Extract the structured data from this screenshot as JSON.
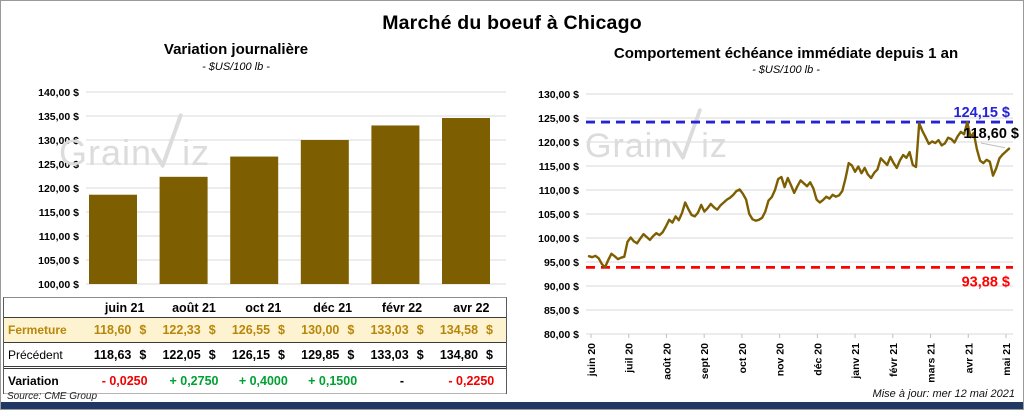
{
  "title": "Marché du boeuf à Chicago",
  "watermark": {
    "part1": "Grain",
    "part2": "iz",
    "full": "GrainWiz"
  },
  "footer": {
    "source": "Source: CME Group",
    "updated": "Mise à jour: mer 12 mai 2021"
  },
  "colors": {
    "gold": "#7D5F02",
    "gold_text": "#B8860B",
    "cream": "#FDF3D0",
    "blue": "#2424D2",
    "red": "#FF0000",
    "green": "#00A033",
    "navy": "#1F3864",
    "grid": "#D9D9D9",
    "watermark": "#DCDCDC",
    "leader": "#BFBFBF"
  },
  "chart_data": [
    {
      "type": "bar",
      "title": "Variation  journalière",
      "subtitle": "- $US/100 lb -",
      "categories": [
        "juin 21",
        "août 21",
        "oct 21",
        "déc 21",
        "févr 22",
        "avr 22"
      ],
      "values": [
        118.6,
        122.33,
        126.55,
        130.0,
        133.03,
        134.58
      ],
      "ylim": [
        100,
        140
      ],
      "ytick_step": 5,
      "ytick_suffix": " $",
      "grid": true,
      "legend": "none"
    },
    {
      "type": "line",
      "title": "Comportement  échéance immédiate depuis 1 an",
      "subtitle": "- $US/100 lb -",
      "x_labels": [
        "juin 20",
        "juil 20",
        "août 20",
        "sept 20",
        "oct 20",
        "nov 20",
        "déc 20",
        "janv 21",
        "févr 21",
        "mars 21",
        "avr 21",
        "mai 21"
      ],
      "values": [
        96.2,
        96.0,
        96.3,
        95.8,
        94.6,
        93.88,
        95.4,
        96.7,
        96.2,
        95.6,
        95.9,
        96.1,
        99.2,
        100.1,
        99.3,
        98.9,
        99.9,
        100.8,
        100.2,
        99.6,
        100.4,
        101.0,
        100.6,
        101.2,
        102.4,
        103.8,
        103.2,
        104.5,
        103.7,
        105.2,
        107.4,
        106.0,
        104.8,
        104.5,
        105.3,
        106.9,
        105.5,
        106.2,
        107.1,
        106.4,
        105.9,
        106.8,
        107.4,
        108.0,
        108.4,
        109.0,
        109.8,
        110.1,
        109.2,
        108.0,
        105.0,
        103.9,
        103.6,
        103.8,
        104.2,
        105.5,
        107.8,
        108.5,
        110.0,
        112.3,
        112.7,
        110.6,
        112.5,
        111.0,
        109.4,
        110.8,
        112.0,
        111.4,
        110.8,
        111.6,
        110.3,
        108.0,
        107.4,
        107.9,
        108.6,
        108.2,
        109.0,
        108.6,
        108.9,
        109.8,
        112.4,
        115.6,
        115.1,
        113.8,
        114.9,
        113.5,
        114.6,
        113.2,
        112.5,
        113.6,
        114.3,
        116.6,
        115.9,
        115.2,
        116.9,
        115.6,
        114.6,
        116.2,
        117.3,
        116.7,
        117.9,
        115.2,
        114.8,
        123.9,
        122.3,
        121.0,
        119.6,
        120.1,
        119.8,
        120.4,
        119.3,
        119.7,
        120.9,
        120.6,
        119.9,
        121.2,
        122.1,
        121.6,
        124.15,
        121.0,
        121.9,
        118.5,
        116.1,
        115.6,
        116.3,
        115.9,
        113.0,
        114.5,
        116.6,
        117.4,
        118.0,
        118.6
      ],
      "ylim": [
        80,
        130
      ],
      "ytick_step": 5,
      "ytick_suffix": " $",
      "grid": true,
      "legend": "none",
      "max_line": {
        "value": 124.15,
        "label": "124,15 $"
      },
      "min_line": {
        "value": 93.88,
        "label": "93,88 $"
      },
      "last_point_label": "118,60 $"
    }
  ],
  "table": {
    "columns": [
      "juin 21",
      "août 21",
      "oct 21",
      "déc 21",
      "févr 22",
      "avr 22"
    ],
    "unit": "$",
    "rows": [
      {
        "label": "Fermeture",
        "style": "fermeture",
        "values": [
          "118,60",
          "122,33",
          "126,55",
          "130,00",
          "133,03",
          "134,58"
        ]
      },
      {
        "label": "Précédent",
        "style": "precedent",
        "values": [
          "118,63",
          "122,05",
          "126,15",
          "129,85",
          "133,03",
          "134,80"
        ]
      },
      {
        "label": "Variation",
        "style": "variation",
        "values": [
          "- 0,0250",
          "+ 0,2750",
          "+ 0,4000",
          "+ 0,1500",
          "-",
          "- 0,2250"
        ],
        "classes": [
          "neg",
          "pos",
          "pos",
          "pos",
          "flat",
          "neg"
        ]
      }
    ]
  }
}
